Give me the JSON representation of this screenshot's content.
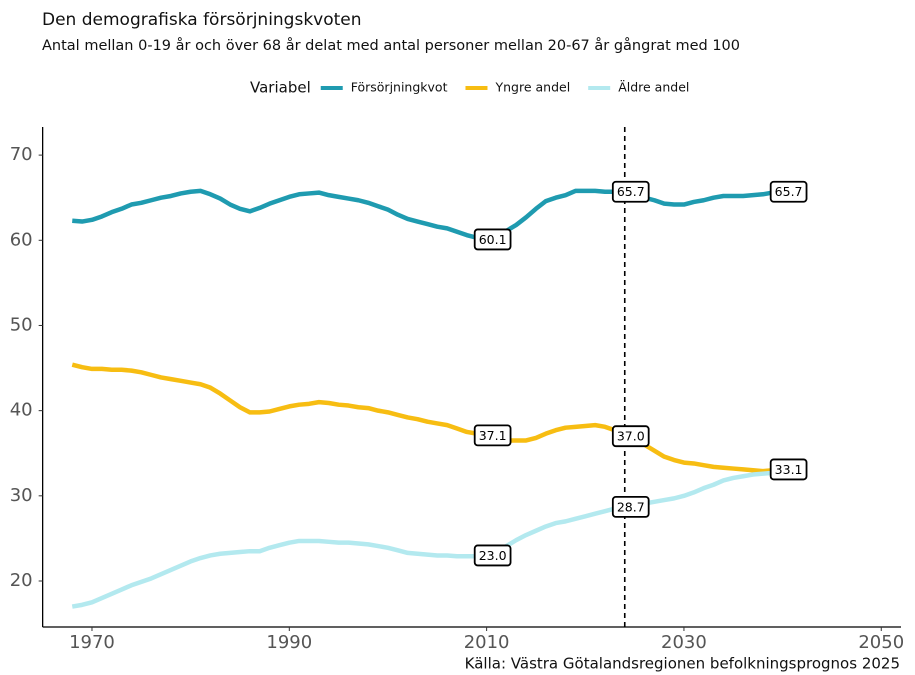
{
  "chart_data": {
    "type": "line",
    "title": "Den demografiska försörjningskvoten",
    "subtitle": "Antal mellan 0-19 år och över 68 år delat med antal personer mellan 20-67 år gångrat med 100",
    "legend_title": "Variabel",
    "legend_position": "top",
    "source": "Källa: Västra Götalandsregionen befolkningsprognos 2025",
    "x": [
      1968,
      1969,
      1970,
      1971,
      1972,
      1973,
      1974,
      1975,
      1976,
      1977,
      1978,
      1979,
      1980,
      1981,
      1982,
      1983,
      1984,
      1985,
      1986,
      1987,
      1988,
      1989,
      1990,
      1991,
      1992,
      1993,
      1994,
      1995,
      1996,
      1997,
      1998,
      1999,
      2000,
      2001,
      2002,
      2003,
      2004,
      2005,
      2006,
      2007,
      2008,
      2009,
      2010,
      2011,
      2012,
      2013,
      2014,
      2015,
      2016,
      2017,
      2018,
      2019,
      2020,
      2021,
      2022,
      2023,
      2024,
      2025,
      2026,
      2027,
      2028,
      2029,
      2030,
      2031,
      2032,
      2033,
      2034,
      2035,
      2036,
      2037,
      2038,
      2039,
      2040
    ],
    "xlim": [
      1965,
      2052
    ],
    "xticks": [
      1970,
      1990,
      2010,
      2030,
      2050
    ],
    "ylim": [
      14.6,
      73.3
    ],
    "yticks": [
      20,
      30,
      40,
      50,
      60,
      70
    ],
    "grid": false,
    "vline": 2024,
    "series": [
      {
        "name": "Försörjningkvot",
        "color": "#1f9bb0",
        "values": [
          62.3,
          62.2,
          62.4,
          62.8,
          63.3,
          63.7,
          64.2,
          64.4,
          64.7,
          65.0,
          65.2,
          65.5,
          65.7,
          65.8,
          65.4,
          64.9,
          64.2,
          63.7,
          63.4,
          63.8,
          64.3,
          64.7,
          65.1,
          65.4,
          65.5,
          65.6,
          65.3,
          65.1,
          64.9,
          64.7,
          64.4,
          64.0,
          63.6,
          63.0,
          62.5,
          62.2,
          61.9,
          61.6,
          61.4,
          61.0,
          60.6,
          60.3,
          60.1,
          60.5,
          61.1,
          61.8,
          62.7,
          63.7,
          64.6,
          65.0,
          65.3,
          65.8,
          65.8,
          65.8,
          65.7,
          65.7,
          65.7,
          65.4,
          65.0,
          64.7,
          64.3,
          64.2,
          64.2,
          64.5,
          64.7,
          65.0,
          65.2,
          65.2,
          65.2,
          65.3,
          65.4,
          65.6,
          65.7
        ],
        "labels": [
          {
            "x": 2010,
            "label": "60.1"
          },
          {
            "x": 2024,
            "label": "65.7"
          },
          {
            "x": 2040,
            "label": "65.7"
          }
        ]
      },
      {
        "name": "Yngre andel",
        "color": "#f7bd12",
        "values": [
          45.4,
          45.1,
          44.9,
          44.9,
          44.8,
          44.8,
          44.7,
          44.5,
          44.2,
          43.9,
          43.7,
          43.5,
          43.3,
          43.1,
          42.7,
          42.0,
          41.2,
          40.4,
          39.8,
          39.8,
          39.9,
          40.2,
          40.5,
          40.7,
          40.8,
          41.0,
          40.9,
          40.7,
          40.6,
          40.4,
          40.3,
          40.0,
          39.8,
          39.5,
          39.2,
          39.0,
          38.7,
          38.5,
          38.3,
          37.9,
          37.5,
          37.3,
          37.1,
          36.7,
          36.5,
          36.5,
          36.5,
          36.8,
          37.3,
          37.7,
          38.0,
          38.1,
          38.2,
          38.3,
          38.1,
          37.7,
          37.0,
          36.5,
          36.0,
          35.3,
          34.6,
          34.2,
          33.9,
          33.8,
          33.6,
          33.4,
          33.3,
          33.2,
          33.1,
          33.0,
          32.9,
          33.0,
          33.1
        ],
        "labels": [
          {
            "x": 2010,
            "label": "37.1"
          },
          {
            "x": 2024,
            "label": "37.0"
          },
          {
            "x": 2040,
            "label": "33.1"
          }
        ]
      },
      {
        "name": "Äldre andel",
        "color": "#b3e9ef",
        "values": [
          17.0,
          17.2,
          17.5,
          18.0,
          18.5,
          19.0,
          19.5,
          19.9,
          20.3,
          20.8,
          21.3,
          21.8,
          22.3,
          22.7,
          23.0,
          23.2,
          23.3,
          23.4,
          23.5,
          23.5,
          23.9,
          24.2,
          24.5,
          24.7,
          24.7,
          24.7,
          24.6,
          24.5,
          24.5,
          24.4,
          24.3,
          24.1,
          23.9,
          23.6,
          23.3,
          23.2,
          23.1,
          23.0,
          23.0,
          22.9,
          22.9,
          22.9,
          23.0,
          23.5,
          24.1,
          24.8,
          25.4,
          25.9,
          26.4,
          26.8,
          27.0,
          27.3,
          27.6,
          27.9,
          28.2,
          28.5,
          28.7,
          28.9,
          29.1,
          29.3,
          29.5,
          29.7,
          30.0,
          30.4,
          30.9,
          31.3,
          31.8,
          32.1,
          32.3,
          32.5,
          32.6,
          32.7,
          32.8
        ],
        "labels": [
          {
            "x": 2010,
            "label": "23.0"
          },
          {
            "x": 2024,
            "label": "28.7"
          }
        ]
      }
    ]
  }
}
